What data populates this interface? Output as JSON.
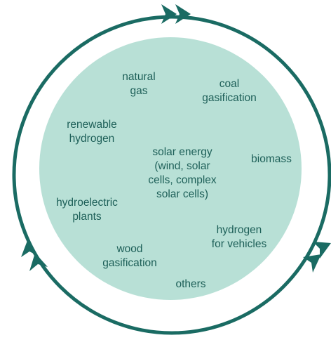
{
  "nodes": [
    {
      "lines": [
        "natural",
        "gas"
      ]
    },
    {
      "lines": [
        "coal",
        "gasification"
      ]
    },
    {
      "lines": [
        "renewable",
        "hydrogen"
      ]
    },
    {
      "lines": [
        "solar energy",
        "(wind, solar",
        "cells, complex",
        "solar cells)"
      ]
    },
    {
      "lines": [
        "biomass"
      ]
    },
    {
      "lines": [
        "hydroelectric",
        "plants"
      ]
    },
    {
      "lines": [
        "hydrogen",
        "for vehicles"
      ]
    },
    {
      "lines": [
        "wood",
        "gasification"
      ]
    },
    {
      "lines": [
        "others"
      ]
    }
  ]
}
